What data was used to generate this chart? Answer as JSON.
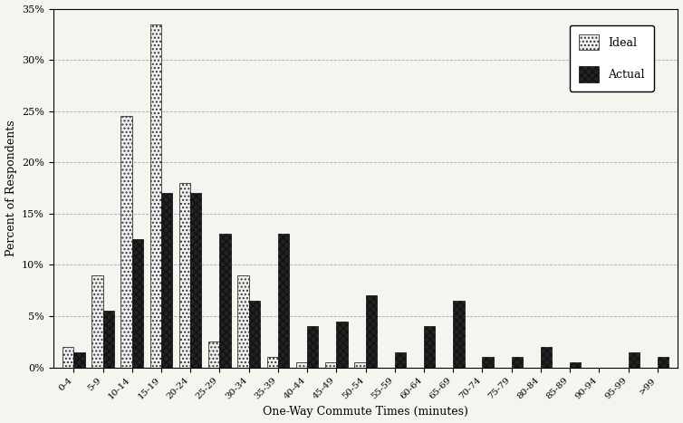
{
  "categories": [
    "0-4",
    "5-9",
    "10-14",
    "15-19",
    "20-24",
    "25-29",
    "30-34",
    "35-39",
    "40-44",
    "45-49",
    "50-54",
    "55-59",
    "60-64",
    "65-69",
    "70-74",
    "75-79",
    "80-84",
    "85-89",
    "90-94",
    "95-99",
    ">99"
  ],
  "ideal": [
    2.0,
    9.0,
    24.5,
    33.5,
    18.0,
    2.5,
    9.0,
    1.0,
    0.5,
    0.5,
    0.5,
    0.0,
    0.0,
    0.0,
    0.0,
    0.0,
    0.0,
    0.0,
    0.0,
    0.0,
    0.0
  ],
  "actual": [
    1.5,
    5.5,
    12.5,
    17.0,
    17.0,
    13.0,
    6.5,
    13.0,
    4.0,
    4.5,
    7.0,
    1.5,
    4.0,
    6.5,
    1.0,
    1.0,
    2.0,
    0.5,
    0.0,
    1.5,
    1.0
  ],
  "ideal_color": "#f0f0f0",
  "ideal_hatch": "....",
  "actual_color": "#303030",
  "actual_hatch": "xxxx",
  "ylabel": "Percent of Respondents",
  "xlabel": "One-Way Commute Times (minutes)",
  "ylim": [
    0,
    35
  ],
  "yticks": [
    0,
    5,
    10,
    15,
    20,
    25,
    30,
    35
  ],
  "ytick_labels": [
    "0%",
    "5%",
    "10%",
    "15%",
    "20%",
    "25%",
    "30%",
    "35%"
  ],
  "background_color": "#f5f5f0",
  "grid_color": "#888888",
  "legend_ideal": "Ideal",
  "legend_actual": "Actual"
}
